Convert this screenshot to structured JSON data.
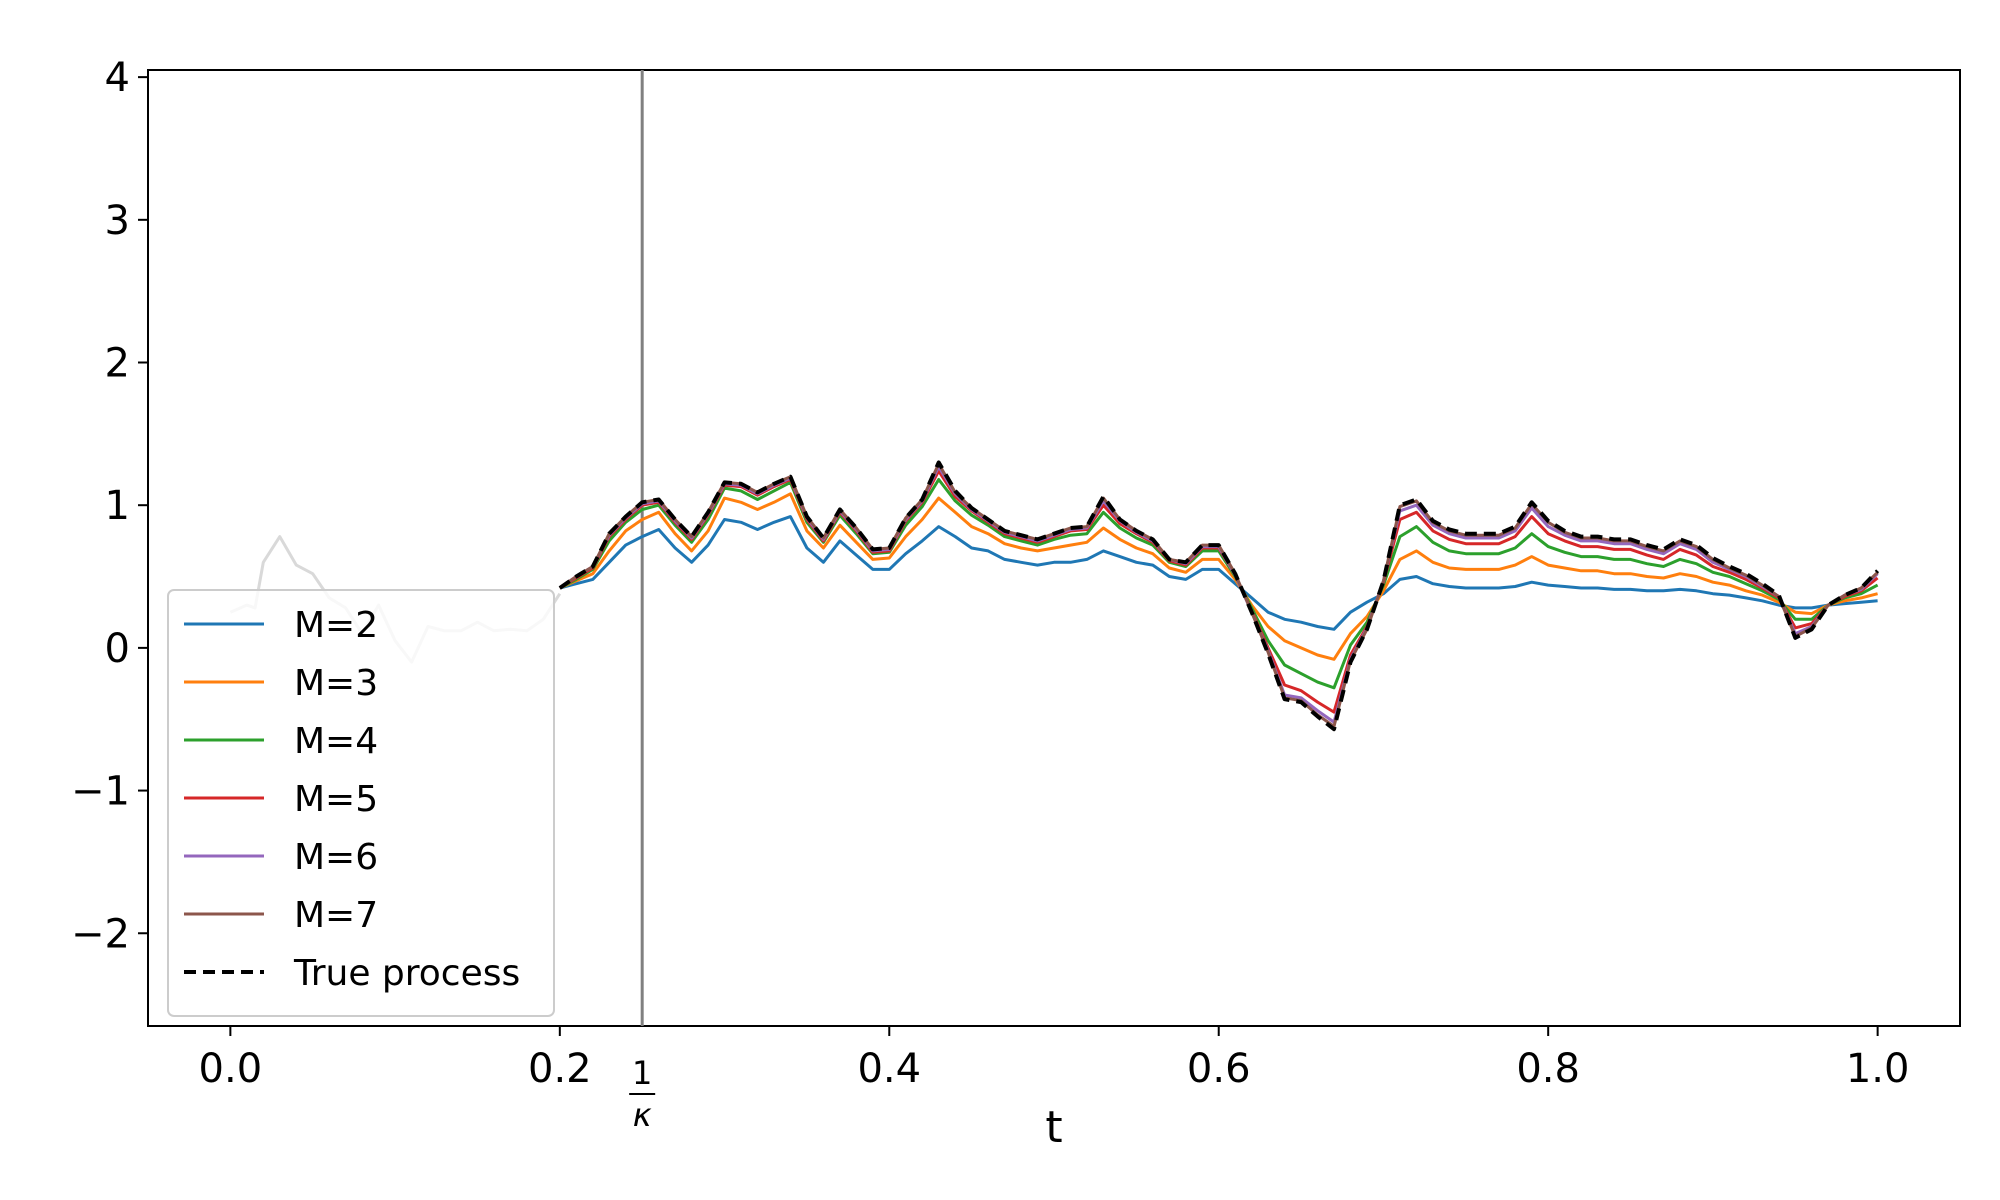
{
  "chart_data": {
    "type": "line",
    "title": "",
    "xlabel": "t",
    "ylabel": "",
    "xlim": [
      -0.05,
      1.05
    ],
    "ylim": [
      -2.65,
      4.05
    ],
    "xticks": [
      0.0,
      0.2,
      0.4,
      0.6,
      0.8,
      1.0
    ],
    "xtick_labels": [
      "0.0",
      "0.2",
      "0.4",
      "0.6",
      "0.8",
      "1.0"
    ],
    "yticks": [
      -2,
      -1,
      0,
      1,
      2,
      3,
      4
    ],
    "ytick_labels": [
      "−2",
      "−1",
      "0",
      "1",
      "2",
      "3",
      "4"
    ],
    "vertical_line": {
      "x": 0.25,
      "label_numerator": "1",
      "label_denominator": "κ",
      "color": "#808080"
    },
    "prefix_segment": {
      "color": "#d9d9d9",
      "x": [
        0.0,
        0.01,
        0.015,
        0.02,
        0.03,
        0.04,
        0.05,
        0.06,
        0.07,
        0.08,
        0.09,
        0.1,
        0.11,
        0.12,
        0.13,
        0.14,
        0.15,
        0.16,
        0.17,
        0.18,
        0.19,
        0.2
      ],
      "y": [
        0.25,
        0.3,
        0.28,
        0.6,
        0.78,
        0.58,
        0.52,
        0.35,
        0.28,
        0.1,
        0.3,
        0.05,
        -0.1,
        0.15,
        0.12,
        0.12,
        0.18,
        0.12,
        0.13,
        0.12,
        0.2,
        0.38
      ]
    },
    "legend": {
      "position": "lower-left"
    },
    "x": [
      0.2,
      0.21,
      0.22,
      0.23,
      0.24,
      0.25,
      0.26,
      0.27,
      0.28,
      0.29,
      0.3,
      0.31,
      0.32,
      0.33,
      0.34,
      0.35,
      0.36,
      0.37,
      0.38,
      0.39,
      0.4,
      0.41,
      0.42,
      0.43,
      0.44,
      0.45,
      0.46,
      0.47,
      0.48,
      0.49,
      0.5,
      0.51,
      0.52,
      0.53,
      0.54,
      0.55,
      0.56,
      0.57,
      0.58,
      0.59,
      0.6,
      0.61,
      0.62,
      0.63,
      0.64,
      0.65,
      0.66,
      0.67,
      0.68,
      0.69,
      0.7,
      0.71,
      0.72,
      0.73,
      0.74,
      0.75,
      0.76,
      0.77,
      0.78,
      0.79,
      0.8,
      0.81,
      0.82,
      0.83,
      0.84,
      0.85,
      0.86,
      0.87,
      0.88,
      0.89,
      0.9,
      0.91,
      0.92,
      0.93,
      0.94,
      0.95,
      0.96,
      0.97,
      0.98,
      0.99,
      1.0
    ],
    "series": [
      {
        "name": "M=2",
        "color": "#1f77b4",
        "dashed": false,
        "values": [
          0.42,
          0.45,
          0.48,
          0.6,
          0.72,
          0.78,
          0.83,
          0.7,
          0.6,
          0.72,
          0.9,
          0.88,
          0.83,
          0.88,
          0.92,
          0.7,
          0.6,
          0.75,
          0.65,
          0.55,
          0.55,
          0.66,
          0.75,
          0.85,
          0.78,
          0.7,
          0.68,
          0.62,
          0.6,
          0.58,
          0.6,
          0.6,
          0.62,
          0.68,
          0.64,
          0.6,
          0.58,
          0.5,
          0.48,
          0.55,
          0.55,
          0.45,
          0.35,
          0.25,
          0.2,
          0.18,
          0.15,
          0.13,
          0.25,
          0.32,
          0.38,
          0.48,
          0.5,
          0.45,
          0.43,
          0.42,
          0.42,
          0.42,
          0.43,
          0.46,
          0.44,
          0.43,
          0.42,
          0.42,
          0.41,
          0.41,
          0.4,
          0.4,
          0.41,
          0.4,
          0.38,
          0.37,
          0.35,
          0.33,
          0.3,
          0.28,
          0.28,
          0.3,
          0.31,
          0.32,
          0.33
        ]
      },
      {
        "name": "M=3",
        "color": "#ff7f0e",
        "dashed": false,
        "values": [
          0.42,
          0.47,
          0.52,
          0.68,
          0.82,
          0.9,
          0.95,
          0.8,
          0.68,
          0.82,
          1.05,
          1.02,
          0.97,
          1.02,
          1.08,
          0.82,
          0.7,
          0.86,
          0.74,
          0.62,
          0.63,
          0.78,
          0.9,
          1.05,
          0.95,
          0.85,
          0.8,
          0.73,
          0.7,
          0.68,
          0.7,
          0.72,
          0.74,
          0.84,
          0.76,
          0.7,
          0.66,
          0.56,
          0.53,
          0.62,
          0.62,
          0.48,
          0.3,
          0.15,
          0.05,
          0.0,
          -0.05,
          -0.08,
          0.1,
          0.22,
          0.4,
          0.62,
          0.68,
          0.6,
          0.56,
          0.55,
          0.55,
          0.55,
          0.58,
          0.64,
          0.58,
          0.56,
          0.54,
          0.54,
          0.52,
          0.52,
          0.5,
          0.49,
          0.52,
          0.5,
          0.46,
          0.44,
          0.4,
          0.37,
          0.32,
          0.25,
          0.24,
          0.3,
          0.33,
          0.35,
          0.38
        ]
      },
      {
        "name": "M=4",
        "color": "#2ca02c",
        "dashed": false,
        "values": [
          0.42,
          0.48,
          0.55,
          0.75,
          0.88,
          0.97,
          1.0,
          0.86,
          0.74,
          0.9,
          1.12,
          1.1,
          1.04,
          1.1,
          1.16,
          0.88,
          0.74,
          0.93,
          0.8,
          0.66,
          0.67,
          0.86,
          0.99,
          1.18,
          1.03,
          0.93,
          0.86,
          0.78,
          0.75,
          0.72,
          0.76,
          0.79,
          0.8,
          0.95,
          0.84,
          0.77,
          0.72,
          0.6,
          0.57,
          0.68,
          0.68,
          0.5,
          0.28,
          0.05,
          -0.12,
          -0.18,
          -0.24,
          -0.28,
          0.02,
          0.18,
          0.44,
          0.78,
          0.85,
          0.74,
          0.68,
          0.66,
          0.66,
          0.66,
          0.7,
          0.8,
          0.71,
          0.67,
          0.64,
          0.64,
          0.62,
          0.62,
          0.59,
          0.57,
          0.62,
          0.59,
          0.53,
          0.5,
          0.45,
          0.4,
          0.34,
          0.2,
          0.2,
          0.3,
          0.35,
          0.38,
          0.44
        ]
      },
      {
        "name": "M=5",
        "color": "#d62728",
        "dashed": false,
        "values": [
          0.42,
          0.49,
          0.56,
          0.78,
          0.9,
          1.0,
          1.02,
          0.88,
          0.76,
          0.93,
          1.14,
          1.13,
          1.07,
          1.13,
          1.18,
          0.9,
          0.75,
          0.95,
          0.82,
          0.67,
          0.68,
          0.89,
          1.02,
          1.24,
          1.06,
          0.96,
          0.88,
          0.8,
          0.77,
          0.74,
          0.78,
          0.82,
          0.83,
          1.0,
          0.87,
          0.8,
          0.74,
          0.61,
          0.58,
          0.7,
          0.7,
          0.51,
          0.26,
          0.0,
          -0.26,
          -0.3,
          -0.38,
          -0.45,
          -0.05,
          0.15,
          0.46,
          0.9,
          0.95,
          0.82,
          0.76,
          0.73,
          0.73,
          0.73,
          0.78,
          0.92,
          0.8,
          0.75,
          0.71,
          0.71,
          0.69,
          0.69,
          0.65,
          0.62,
          0.69,
          0.65,
          0.57,
          0.53,
          0.48,
          0.42,
          0.35,
          0.14,
          0.17,
          0.3,
          0.36,
          0.4,
          0.49
        ]
      },
      {
        "name": "M=6",
        "color": "#9467bd",
        "dashed": false,
        "values": [
          0.42,
          0.5,
          0.57,
          0.79,
          0.91,
          1.01,
          1.03,
          0.89,
          0.77,
          0.94,
          1.15,
          1.14,
          1.08,
          1.14,
          1.19,
          0.91,
          0.76,
          0.96,
          0.83,
          0.68,
          0.69,
          0.9,
          1.03,
          1.27,
          1.08,
          0.97,
          0.89,
          0.81,
          0.78,
          0.75,
          0.79,
          0.83,
          0.84,
          1.03,
          0.89,
          0.81,
          0.75,
          0.62,
          0.59,
          0.71,
          0.71,
          0.51,
          0.25,
          -0.02,
          -0.33,
          -0.35,
          -0.44,
          -0.52,
          -0.08,
          0.14,
          0.47,
          0.96,
          1.0,
          0.86,
          0.8,
          0.77,
          0.77,
          0.77,
          0.82,
          0.98,
          0.85,
          0.79,
          0.75,
          0.75,
          0.73,
          0.73,
          0.69,
          0.66,
          0.73,
          0.69,
          0.6,
          0.55,
          0.5,
          0.43,
          0.36,
          0.1,
          0.15,
          0.3,
          0.37,
          0.41,
          0.52
        ]
      },
      {
        "name": "M=7",
        "color": "#8c564b",
        "dashed": false,
        "values": [
          0.42,
          0.5,
          0.57,
          0.8,
          0.92,
          1.02,
          1.04,
          0.9,
          0.78,
          0.95,
          1.16,
          1.15,
          1.09,
          1.15,
          1.2,
          0.92,
          0.77,
          0.97,
          0.84,
          0.69,
          0.7,
          0.91,
          1.04,
          1.29,
          1.09,
          0.98,
          0.9,
          0.82,
          0.79,
          0.76,
          0.8,
          0.84,
          0.85,
          1.05,
          0.9,
          0.82,
          0.76,
          0.62,
          0.6,
          0.72,
          0.72,
          0.52,
          0.25,
          -0.03,
          -0.35,
          -0.37,
          -0.47,
          -0.55,
          -0.09,
          0.13,
          0.47,
          0.99,
          1.03,
          0.88,
          0.82,
          0.79,
          0.79,
          0.79,
          0.84,
          1.01,
          0.88,
          0.81,
          0.77,
          0.77,
          0.75,
          0.75,
          0.71,
          0.68,
          0.75,
          0.71,
          0.62,
          0.56,
          0.51,
          0.44,
          0.36,
          0.08,
          0.14,
          0.3,
          0.37,
          0.42,
          0.53
        ]
      },
      {
        "name": "True process",
        "color": "#000000",
        "dashed": true,
        "values": [
          0.42,
          0.5,
          0.57,
          0.8,
          0.92,
          1.02,
          1.04,
          0.9,
          0.78,
          0.95,
          1.16,
          1.15,
          1.09,
          1.15,
          1.2,
          0.92,
          0.77,
          0.97,
          0.84,
          0.69,
          0.7,
          0.91,
          1.04,
          1.3,
          1.1,
          0.98,
          0.9,
          0.82,
          0.79,
          0.76,
          0.8,
          0.84,
          0.85,
          1.06,
          0.9,
          0.82,
          0.76,
          0.62,
          0.6,
          0.72,
          0.72,
          0.52,
          0.25,
          -0.04,
          -0.36,
          -0.38,
          -0.48,
          -0.57,
          -0.1,
          0.13,
          0.47,
          1.0,
          1.04,
          0.89,
          0.83,
          0.8,
          0.8,
          0.8,
          0.85,
          1.02,
          0.89,
          0.82,
          0.78,
          0.78,
          0.76,
          0.76,
          0.72,
          0.69,
          0.76,
          0.72,
          0.63,
          0.57,
          0.52,
          0.45,
          0.37,
          0.07,
          0.13,
          0.3,
          0.37,
          0.42,
          0.54
        ]
      }
    ]
  }
}
